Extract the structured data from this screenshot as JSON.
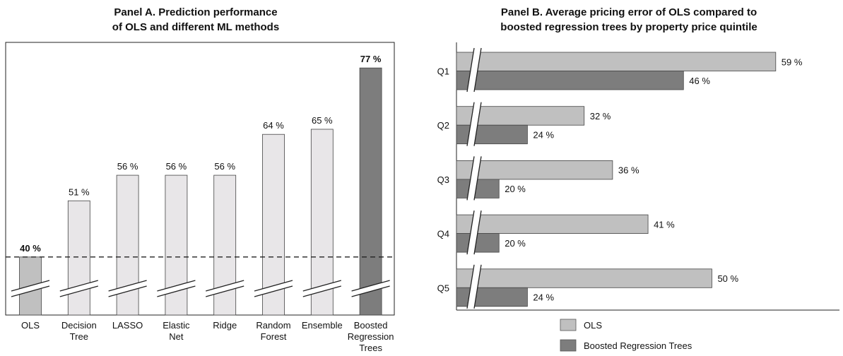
{
  "chart_data": [
    {
      "type": "bar",
      "title_lines": [
        "Panel A. Prediction performance",
        "of OLS and different ML methods"
      ],
      "categories": [
        [
          "OLS"
        ],
        [
          "Decision",
          "Tree"
        ],
        [
          "LASSO"
        ],
        [
          "Elastic",
          "Net"
        ],
        [
          "Ridge"
        ],
        [
          "Random",
          "Forest"
        ],
        [
          "Ensemble"
        ],
        [
          "Boosted",
          "Regression",
          "Trees"
        ]
      ],
      "values": [
        40,
        51,
        56,
        56,
        56,
        64,
        65,
        77
      ],
      "value_labels": [
        "40 %",
        "51 %",
        "56 %",
        "56 %",
        "56 %",
        "64 %",
        "65 %",
        "77 %"
      ],
      "bold_labels": [
        true,
        false,
        false,
        false,
        false,
        false,
        false,
        true
      ],
      "bar_colors": [
        "#c0c0c0",
        "#e8e6e8",
        "#e8e6e8",
        "#e8e6e8",
        "#e8e6e8",
        "#e8e6e8",
        "#e8e6e8",
        "#7d7d7d"
      ],
      "reference_line": 40,
      "axis_break": true,
      "ylim_visible": [
        35,
        82
      ]
    },
    {
      "type": "bar",
      "orientation": "horizontal",
      "title_lines": [
        "Panel B. Average pricing error of OLS compared to",
        "boosted regression trees by property price quintile"
      ],
      "categories": [
        "Q1",
        "Q2",
        "Q3",
        "Q4",
        "Q5"
      ],
      "series": [
        {
          "name": "OLS",
          "values": [
            59,
            32,
            36,
            41,
            50
          ],
          "labels": [
            "59 %",
            "32 %",
            "36 %",
            "41 %",
            "50 %"
          ],
          "color": "#c0c0c0"
        },
        {
          "name": "Boosted Regression Trees",
          "values": [
            46,
            24,
            20,
            20,
            24
          ],
          "labels": [
            "46 %",
            "24 %",
            "20 %",
            "20 %",
            "24 %"
          ],
          "color": "#7d7d7d"
        }
      ],
      "axis_break": true,
      "legend_position": "bottom-center",
      "xlim_visible": [
        14,
        64
      ]
    }
  ]
}
